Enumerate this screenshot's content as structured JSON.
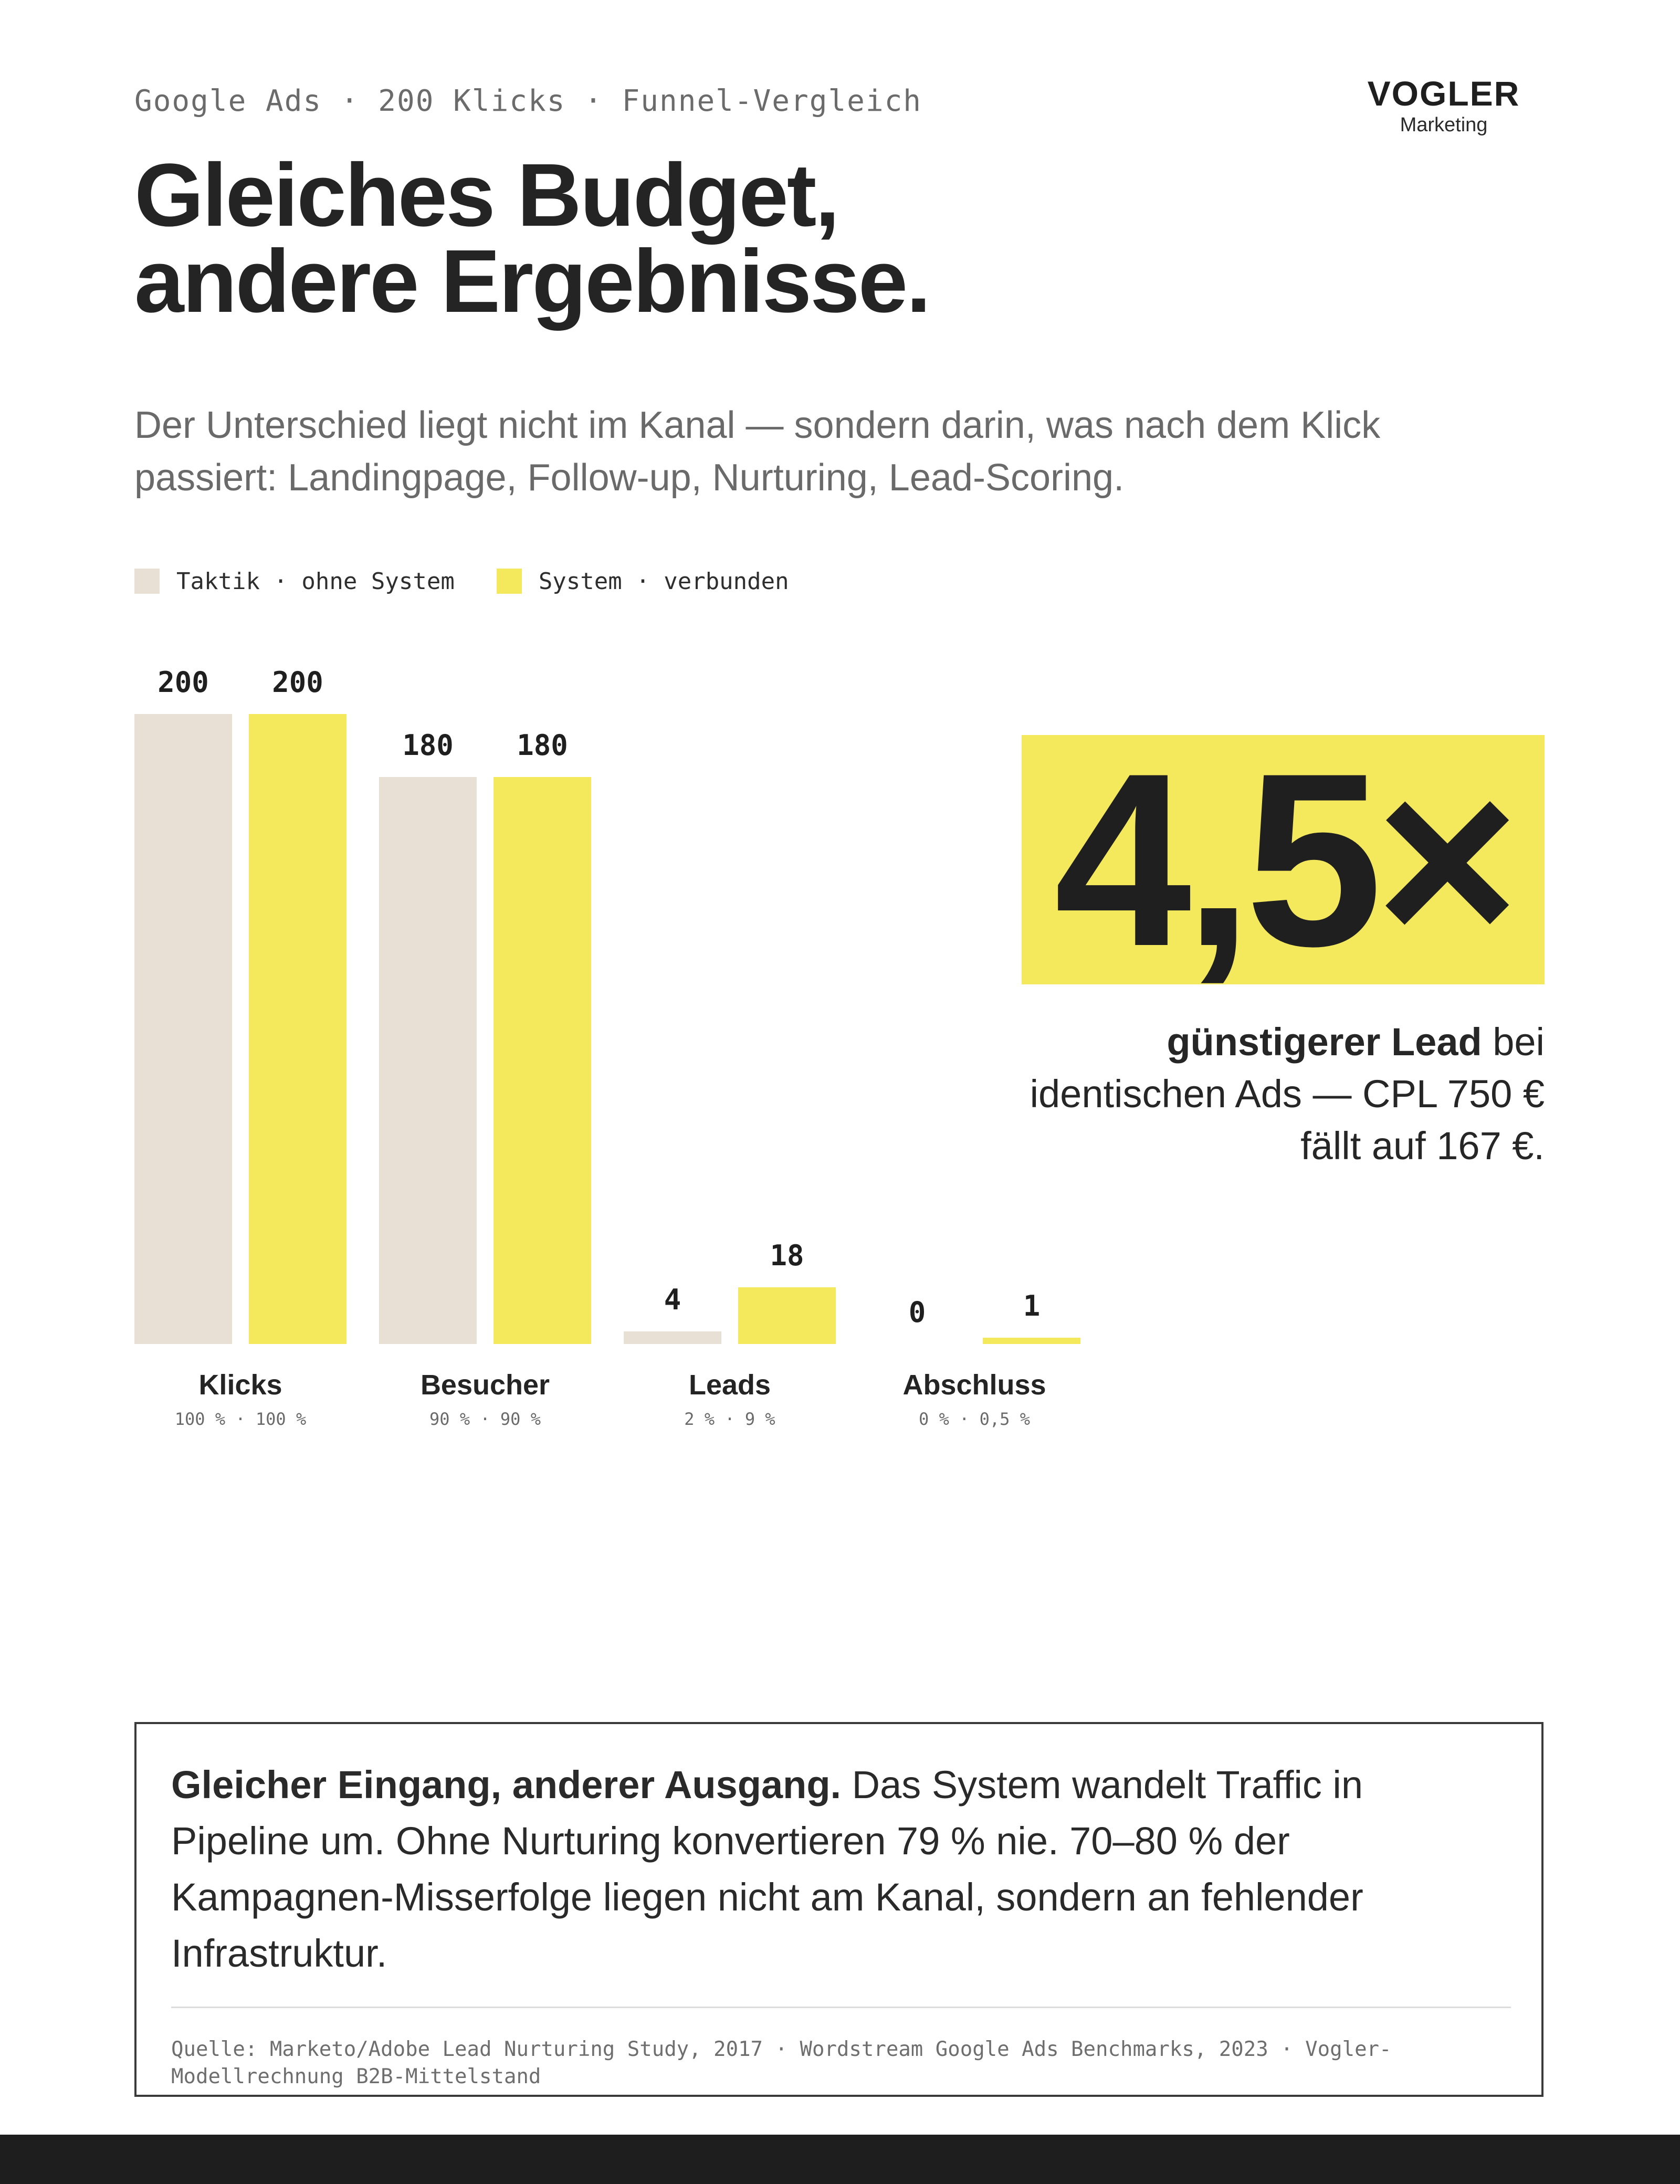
{
  "header": {
    "kicker": "Google Ads · 200 Klicks · Funnel-Vergleich",
    "logo_name": "VOGLER",
    "logo_sub": "Marketing"
  },
  "title_lines": [
    "Gleiches Budget,",
    "andere Ergebnisse."
  ],
  "subtitle_lines": [
    "Der Unterschied liegt nicht im Kanal — sondern darin, was nach dem Klick",
    "passiert: Landingpage, Follow-up, Nurturing, Lead-Scoring."
  ],
  "colors": {
    "taktik": "#e8e0d4",
    "system": "#f4e85c",
    "text": "#242424"
  },
  "chart_data": {
    "type": "bar",
    "categories": [
      "Klicks",
      "Besucher",
      "Leads",
      "Abschluss"
    ],
    "series": [
      {
        "name": "Taktik · ohne System",
        "values": [
          200,
          180,
          4,
          0
        ]
      },
      {
        "name": "System · verbunden",
        "values": [
          200,
          180,
          18,
          1
        ]
      }
    ],
    "category_rates": [
      "100 % · 100 %",
      "90 % · 90 %",
      "2 % · 9 %",
      "0 % · 0,5 %"
    ],
    "title": "",
    "xlabel": "",
    "ylabel": "",
    "ylim": [
      0,
      200
    ],
    "grid": false,
    "legend": "top-left"
  },
  "highlight": {
    "value": "4,5×",
    "desc_bold": "günstigerer Lead",
    "desc_rest": " bei",
    "desc_lines": [
      "identischen Ads — CPL 750 €",
      "fällt auf 167 €."
    ]
  },
  "note": {
    "bold": "Gleicher Eingang, anderer Ausgang.",
    "first_rest": " Das System wandelt Traffic in",
    "lines": [
      "Pipeline um. Ohne Nurturing konvertieren 79 % nie. 70–80 % der",
      "Kampagnen-Misserfolge liegen nicht am Kanal, sondern an fehlender",
      "Infrastruktur."
    ],
    "source_lines": [
      "Quelle: Marketo/Adobe Lead Nurturing Study, 2017 · Wordstream Google Ads Benchmarks, 2023 · Vogler-",
      "Modellrechnung B2B-Mittelstand"
    ]
  }
}
